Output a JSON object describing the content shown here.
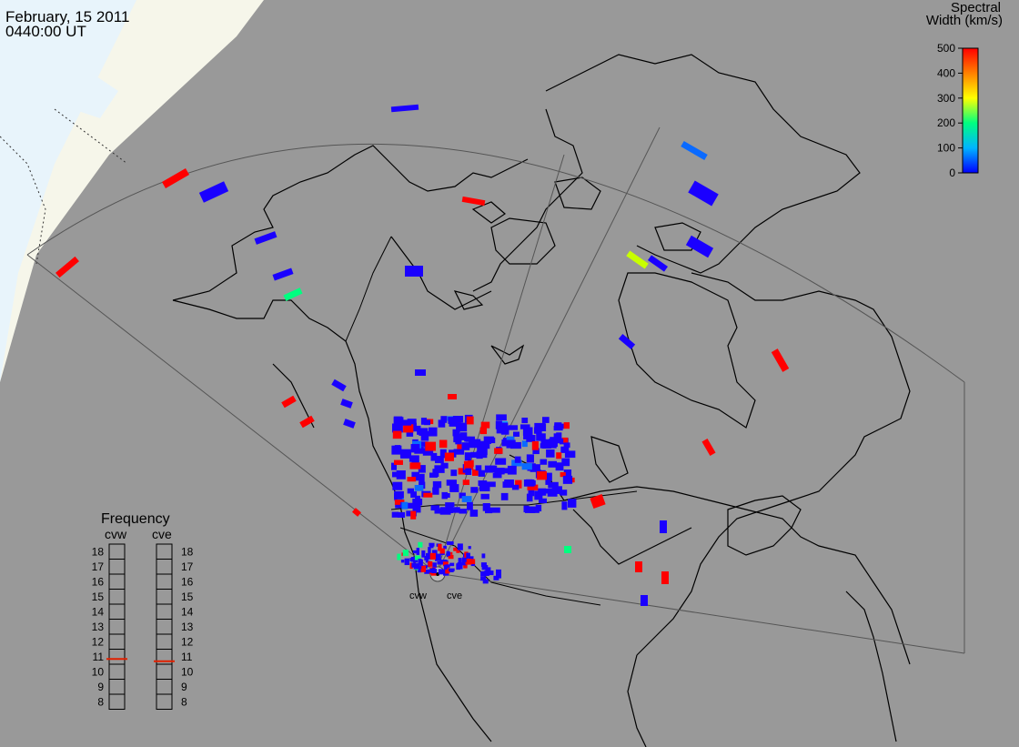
{
  "header": {
    "date": "February, 15 2011",
    "time": "0440:00 UT"
  },
  "colorbar": {
    "title_line1": "Spectral",
    "title_line2": "Width (km/s)",
    "ticks": [
      "500",
      "400",
      "300",
      "200",
      "100",
      "0"
    ],
    "colors": [
      "#0000ff",
      "#00b4ff",
      "#00ff80",
      "#ffff00",
      "#ff8000",
      "#ff0000"
    ]
  },
  "frequency_panel": {
    "title": "Frequency",
    "radar_left": "cvw",
    "radar_right": "cve",
    "ticks": [
      "18",
      "17",
      "16",
      "15",
      "14",
      "13",
      "12",
      "11",
      "10",
      "9",
      "8"
    ],
    "indicator_left": 10.85,
    "indicator_right": 10.7,
    "indicator_color": "#e02000"
  },
  "radar_labels": {
    "west": "cvw",
    "east": "cve"
  },
  "colors": {
    "ocean": "#999999",
    "daylight": "#e8f4fb",
    "twilight": "#f6f6ea",
    "coast": "#000000",
    "fov": "#555555"
  }
}
